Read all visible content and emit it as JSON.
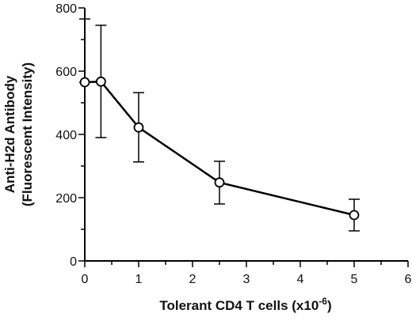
{
  "chart_data": {
    "type": "line",
    "xlabel": "Tolerant CD4 T cells (x10",
    "xlabel_exponent": "-6",
    "xlabel_suffix": ")",
    "ylabel_line1": "Anti-H2d Antibody",
    "ylabel_line2": "(Fluorescent Intensity)",
    "xlim": [
      0,
      6
    ],
    "ylim": [
      0,
      800
    ],
    "xticks": [
      0,
      1,
      2,
      3,
      4,
      5,
      6
    ],
    "yticks": [
      0,
      200,
      400,
      600,
      800
    ],
    "grid": false,
    "points": [
      {
        "x": 0,
        "y": 565,
        "err_low": 565,
        "err_high": 765
      },
      {
        "x": 0.3,
        "y": 567,
        "err_low": 390,
        "err_high": 745
      },
      {
        "x": 1,
        "y": 422,
        "err_low": 313,
        "err_high": 532
      },
      {
        "x": 2.5,
        "y": 248,
        "err_low": 180,
        "err_high": 315
      },
      {
        "x": 5,
        "y": 145,
        "err_low": 95,
        "err_high": 195
      }
    ]
  }
}
